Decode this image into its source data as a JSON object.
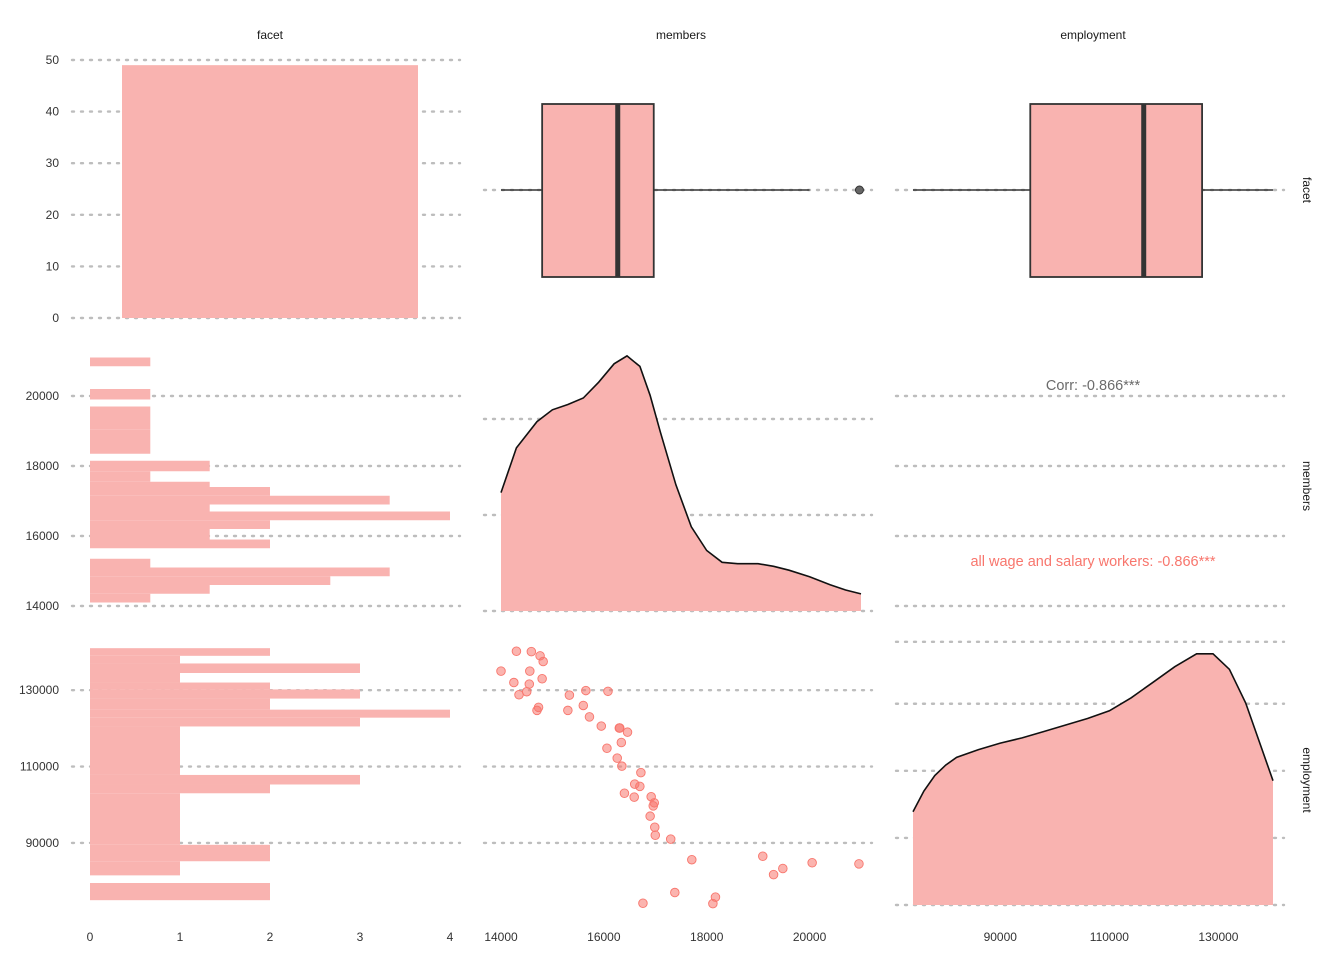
{
  "chart_data": {
    "type": "scatter-matrix",
    "variables": [
      "facet",
      "members",
      "employment"
    ],
    "fill_color": "#f9b3b0",
    "point_color": "#f8766d",
    "group_name": "all wage and salary workers",
    "ranges": {
      "members": [
        14000,
        21000
      ],
      "employment": [
        74000,
        140000
      ]
    },
    "panels": {
      "facet_facet": {
        "type": "bar",
        "categories": [
          "all wage and salary workers"
        ],
        "values": [
          49
        ],
        "ylim": [
          0,
          50
        ],
        "yticks": [
          "0",
          "10",
          "20",
          "30",
          "40",
          "50"
        ]
      },
      "facet_members": {
        "type": "boxplot",
        "whisker_low": 14000,
        "q1": 14800,
        "median": 16270,
        "q3": 16970,
        "whisker_high": 20000,
        "outliers": [
          20970
        ]
      },
      "facet_employment": {
        "type": "boxplot",
        "whisker_low": 74000,
        "q1": 95500,
        "median": 116300,
        "q3": 127000,
        "whisker_high": 140000,
        "outliers": []
      },
      "members_facet": {
        "type": "histogram",
        "yticks": [
          "14000",
          "16000",
          "18000",
          "20000"
        ],
        "bins": [
          {
            "lo": 14100,
            "hi": 14350,
            "count": 0.67
          },
          {
            "lo": 14350,
            "hi": 14600,
            "count": 1.33
          },
          {
            "lo": 14600,
            "hi": 14850,
            "count": 2.67
          },
          {
            "lo": 14850,
            "hi": 15100,
            "count": 3.33
          },
          {
            "lo": 15100,
            "hi": 15350,
            "count": 0.67
          },
          {
            "lo": 15350,
            "hi": 15650,
            "count": 0
          },
          {
            "lo": 15650,
            "hi": 15900,
            "count": 2
          },
          {
            "lo": 15900,
            "hi": 16200,
            "count": 1.33
          },
          {
            "lo": 16200,
            "hi": 16450,
            "count": 2
          },
          {
            "lo": 16450,
            "hi": 16700,
            "count": 4
          },
          {
            "lo": 16700,
            "hi": 16900,
            "count": 1.33
          },
          {
            "lo": 16900,
            "hi": 17150,
            "count": 3.33
          },
          {
            "lo": 17150,
            "hi": 17400,
            "count": 2
          },
          {
            "lo": 17400,
            "hi": 17550,
            "count": 1.33
          },
          {
            "lo": 17550,
            "hi": 17850,
            "count": 0.67
          },
          {
            "lo": 17850,
            "hi": 18150,
            "count": 1.33
          },
          {
            "lo": 18350,
            "hi": 19050,
            "count": 0.67
          },
          {
            "lo": 19050,
            "hi": 19700,
            "count": 0.67
          },
          {
            "lo": 19900,
            "hi": 20200,
            "count": 0.67
          },
          {
            "lo": 20850,
            "hi": 21100,
            "count": 0.67
          }
        ]
      },
      "members_members": {
        "type": "density",
        "points": [
          [
            14000,
            0.45
          ],
          [
            14300,
            0.62
          ],
          [
            14700,
            0.72
          ],
          [
            15000,
            0.765
          ],
          [
            15300,
            0.785
          ],
          [
            15600,
            0.81
          ],
          [
            15900,
            0.87
          ],
          [
            16200,
            0.94
          ],
          [
            16450,
            0.97
          ],
          [
            16700,
            0.93
          ],
          [
            16900,
            0.82
          ],
          [
            17100,
            0.68
          ],
          [
            17400,
            0.48
          ],
          [
            17700,
            0.32
          ],
          [
            18000,
            0.23
          ],
          [
            18300,
            0.185
          ],
          [
            18600,
            0.18
          ],
          [
            19000,
            0.18
          ],
          [
            19300,
            0.17
          ],
          [
            19600,
            0.155
          ],
          [
            20000,
            0.13
          ],
          [
            20400,
            0.1
          ],
          [
            20700,
            0.08
          ],
          [
            21000,
            0.065
          ]
        ],
        "ymax": 1
      },
      "members_employment": {
        "type": "text",
        "corr_all": "Corr: -0.866***",
        "corr_group": "all wage and salary workers: -0.866***"
      },
      "employment_facet": {
        "type": "histogram",
        "yticks": [
          "90000",
          "110000",
          "130000"
        ],
        "bins": [
          {
            "lo": 75000,
            "hi": 79500,
            "count": 2
          },
          {
            "lo": 81500,
            "hi": 85200,
            "count": 1
          },
          {
            "lo": 85200,
            "hi": 89500,
            "count": 2
          },
          {
            "lo": 89500,
            "hi": 103000,
            "count": 1
          },
          {
            "lo": 103000,
            "hi": 105300,
            "count": 2
          },
          {
            "lo": 105300,
            "hi": 107800,
            "count": 3
          },
          {
            "lo": 107800,
            "hi": 120500,
            "count": 1
          },
          {
            "lo": 120500,
            "hi": 122800,
            "count": 3
          },
          {
            "lo": 122800,
            "hi": 124900,
            "count": 4
          },
          {
            "lo": 124900,
            "hi": 127800,
            "count": 2
          },
          {
            "lo": 127800,
            "hi": 130200,
            "count": 3
          },
          {
            "lo": 130200,
            "hi": 132000,
            "count": 2
          },
          {
            "lo": 132000,
            "hi": 134500,
            "count": 1
          },
          {
            "lo": 134500,
            "hi": 137000,
            "count": 3
          },
          {
            "lo": 137000,
            "hi": 139000,
            "count": 1
          },
          {
            "lo": 139000,
            "hi": 141000,
            "count": 2
          }
        ]
      },
      "employment_members": {
        "type": "scatter",
        "points": [
          [
            14000,
            135000
          ],
          [
            14250,
            132000
          ],
          [
            14300,
            140200
          ],
          [
            14350,
            128800
          ],
          [
            14500,
            129600
          ],
          [
            14550,
            131600
          ],
          [
            14560,
            135000
          ],
          [
            14590,
            140100
          ],
          [
            14700,
            124700
          ],
          [
            14730,
            125500
          ],
          [
            14760,
            139000
          ],
          [
            14800,
            133000
          ],
          [
            14820,
            137500
          ],
          [
            15300,
            124700
          ],
          [
            15330,
            128700
          ],
          [
            15600,
            126000
          ],
          [
            15650,
            129900
          ],
          [
            15720,
            123000
          ],
          [
            15950,
            120600
          ],
          [
            16080,
            129700
          ],
          [
            16060,
            114800
          ],
          [
            16260,
            112200
          ],
          [
            16300,
            120100
          ],
          [
            16310,
            120100
          ],
          [
            16340,
            116300
          ],
          [
            16350,
            110100
          ],
          [
            16400,
            103000
          ],
          [
            16460,
            119000
          ],
          [
            16590,
            102000
          ],
          [
            16600,
            105400
          ],
          [
            16700,
            104800
          ],
          [
            16720,
            108400
          ],
          [
            16760,
            74200
          ],
          [
            16900,
            97000
          ],
          [
            16920,
            102100
          ],
          [
            16960,
            99700
          ],
          [
            16980,
            100500
          ],
          [
            16990,
            94100
          ],
          [
            17000,
            92000
          ],
          [
            17300,
            91000
          ],
          [
            17380,
            77000
          ],
          [
            17710,
            85600
          ],
          [
            18120,
            74100
          ],
          [
            18170,
            75800
          ],
          [
            19090,
            86500
          ],
          [
            19300,
            81700
          ],
          [
            19480,
            83300
          ],
          [
            20050,
            84800
          ],
          [
            20960,
            84500
          ]
        ]
      },
      "employment_employment": {
        "type": "density",
        "points": [
          [
            74000,
            0.36
          ],
          [
            76000,
            0.44
          ],
          [
            78000,
            0.5
          ],
          [
            80000,
            0.54
          ],
          [
            82000,
            0.57
          ],
          [
            86000,
            0.6
          ],
          [
            90000,
            0.625
          ],
          [
            94000,
            0.645
          ],
          [
            98000,
            0.67
          ],
          [
            102000,
            0.695
          ],
          [
            106000,
            0.72
          ],
          [
            110000,
            0.75
          ],
          [
            114000,
            0.8
          ],
          [
            118000,
            0.86
          ],
          [
            122000,
            0.92
          ],
          [
            126000,
            0.97
          ],
          [
            129000,
            0.97
          ],
          [
            132000,
            0.91
          ],
          [
            135000,
            0.78
          ],
          [
            138000,
            0.6
          ],
          [
            140000,
            0.48
          ]
        ],
        "ymax": 1
      }
    },
    "x_ticks": {
      "facet": [
        "0",
        "1",
        "2",
        "3",
        "4"
      ],
      "members": [
        "14000",
        "16000",
        "18000",
        "20000"
      ],
      "employment": [
        "90000",
        "110000",
        "130000"
      ]
    }
  }
}
